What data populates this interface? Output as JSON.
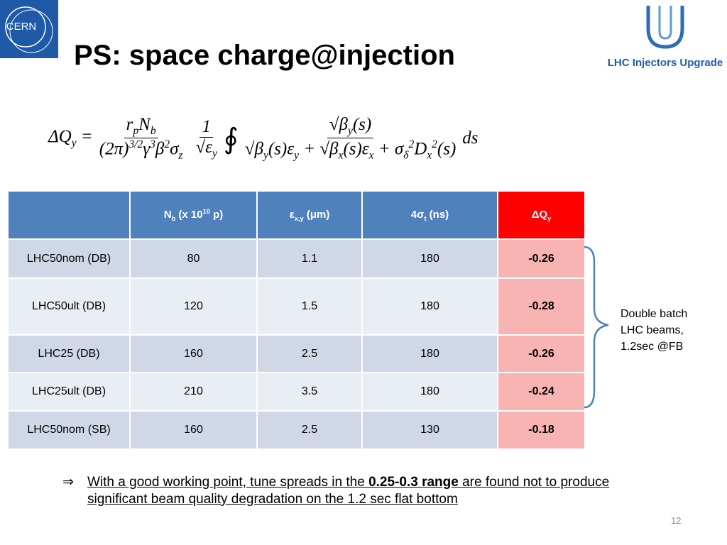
{
  "header": {
    "title": "PS: space charge@injection",
    "logo_left": "CERN",
    "logo_right": "LHC Injectors Upgrade"
  },
  "formula": {
    "lhs": [
      {
        "t": "ΔQ"
      },
      {
        "sub": "y"
      },
      {
        "t": " = "
      }
    ],
    "frac1_num": [
      {
        "t": "r"
      },
      {
        "sub": "p"
      },
      {
        "t": "N"
      },
      {
        "sub": "b"
      }
    ],
    "frac1_den": [
      {
        "t": "(2π)"
      },
      {
        "sup": "3/2"
      },
      {
        "t": "γ"
      },
      {
        "sup": "3"
      },
      {
        "t": "β"
      },
      {
        "sup": "2"
      },
      {
        "t": "σ"
      },
      {
        "sub": "z"
      }
    ],
    "frac2_num": [
      {
        "t": "1"
      }
    ],
    "frac2_den": [
      {
        "t": "√ε"
      },
      {
        "sub": "y"
      }
    ],
    "integral": "∮",
    "frac3_num": [
      {
        "t": "√β"
      },
      {
        "sub": "y"
      },
      {
        "t": "(s)"
      }
    ],
    "frac3_den": [
      {
        "t": "√β"
      },
      {
        "sub": "y"
      },
      {
        "t": "(s)ε"
      },
      {
        "sub": "y"
      },
      {
        "t": " + √β"
      },
      {
        "sub": "x"
      },
      {
        "t": "(s)ε"
      },
      {
        "sub": "x"
      },
      {
        "t": " + σ"
      },
      {
        "sub": "δ"
      },
      {
        "sup": "2"
      },
      {
        "t": "D"
      },
      {
        "sub": "x"
      },
      {
        "sup": "2"
      },
      {
        "t": "(s)"
      }
    ],
    "tail": "ds"
  },
  "table": {
    "headers": [
      [
        {
          "t": "N"
        },
        {
          "sub": "b"
        },
        {
          "t": " (x 10"
        },
        {
          "sup": "10"
        },
        {
          "t": " p)"
        }
      ],
      [
        {
          "t": "ε"
        },
        {
          "sub": "x,y"
        },
        {
          "t": " (μm)"
        }
      ],
      [
        {
          "t": "4σ"
        },
        {
          "sub": "t"
        },
        {
          "t": " (ns)"
        }
      ],
      [
        {
          "t": "ΔQ"
        },
        {
          "sub": "y"
        }
      ]
    ],
    "rows": [
      [
        "LHC50nom (DB)",
        80,
        1.1,
        180,
        -0.26
      ],
      [
        "LHC50ult (DB)",
        120,
        1.5,
        180,
        -0.28
      ],
      [
        "LHC25 (DB)",
        160,
        2.5,
        180,
        -0.26
      ],
      [
        "LHC25ult (DB)",
        210,
        3.5,
        180,
        -0.24
      ],
      [
        "LHC50nom (SB)",
        160,
        2.5,
        130,
        -0.18
      ]
    ]
  },
  "annotation": [
    "Double batch",
    "LHC beams,",
    "1.2sec @FB"
  ],
  "conclusion": {
    "arrow": "⇒",
    "text1": "With a good working point, tune spreads in the ",
    "bold": "0.25-0.3 range",
    "text2": " are found not to produce significant beam quality degradation on the 1.2 sec flat bottom"
  },
  "page_number": "12"
}
